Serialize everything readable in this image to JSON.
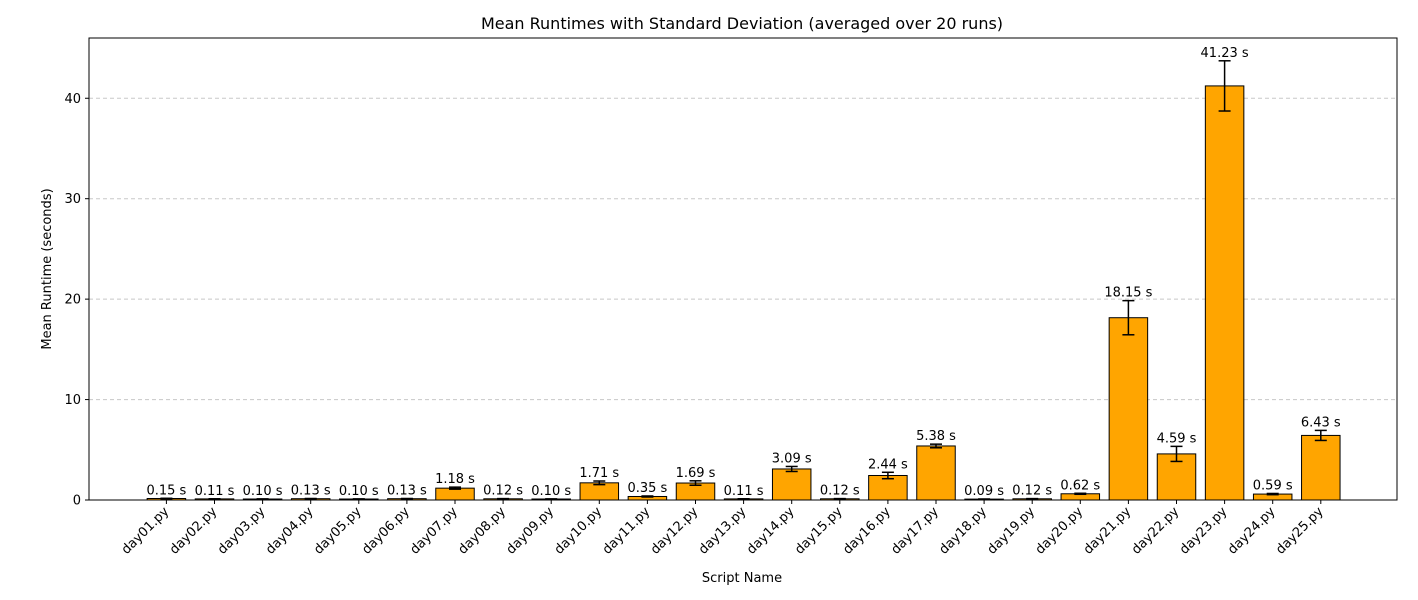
{
  "chart_data": {
    "type": "bar",
    "title": "Mean Runtimes with Standard Deviation (averaged over 20 runs)",
    "xlabel": "Script Name",
    "ylabel": "Mean Runtime (seconds)",
    "ylim": [
      0,
      46
    ],
    "yticks": [
      0,
      10,
      20,
      30,
      40
    ],
    "grid": "y-dashed",
    "bar_color": "#ffa500",
    "bar_edge_color": "#000000",
    "grid_color": "#c8c8c8",
    "categories": [
      "day01.py",
      "day02.py",
      "day03.py",
      "day04.py",
      "day05.py",
      "day06.py",
      "day07.py",
      "day08.py",
      "day09.py",
      "day10.py",
      "day11.py",
      "day12.py",
      "day13.py",
      "day14.py",
      "day15.py",
      "day16.py",
      "day17.py",
      "day18.py",
      "day19.py",
      "day20.py",
      "day21.py",
      "day22.py",
      "day23.py",
      "day24.py",
      "day25.py"
    ],
    "values": [
      0.15,
      0.11,
      0.1,
      0.13,
      0.1,
      0.13,
      1.18,
      0.12,
      0.1,
      1.71,
      0.35,
      1.69,
      0.11,
      3.09,
      0.12,
      2.44,
      5.38,
      0.09,
      0.12,
      0.62,
      18.15,
      4.59,
      41.23,
      0.59,
      6.43
    ],
    "std": [
      0.02,
      0.01,
      0.01,
      0.02,
      0.01,
      0.02,
      0.1,
      0.02,
      0.01,
      0.18,
      0.05,
      0.22,
      0.01,
      0.25,
      0.02,
      0.32,
      0.18,
      0.01,
      0.02,
      0.05,
      1.7,
      0.75,
      2.5,
      0.06,
      0.5
    ],
    "data_labels": [
      "0.15 s",
      "0.11 s",
      "0.10 s",
      "0.13 s",
      "0.10 s",
      "0.13 s",
      "1.18 s",
      "0.12 s",
      "0.10 s",
      "1.71 s",
      "0.35 s",
      "1.69 s",
      "0.11 s",
      "3.09 s",
      "0.12 s",
      "2.44 s",
      "5.38 s",
      "0.09 s",
      "0.12 s",
      "0.62 s",
      "18.15 s",
      "4.59 s",
      "41.23 s",
      "0.59 s",
      "6.43 s"
    ]
  }
}
